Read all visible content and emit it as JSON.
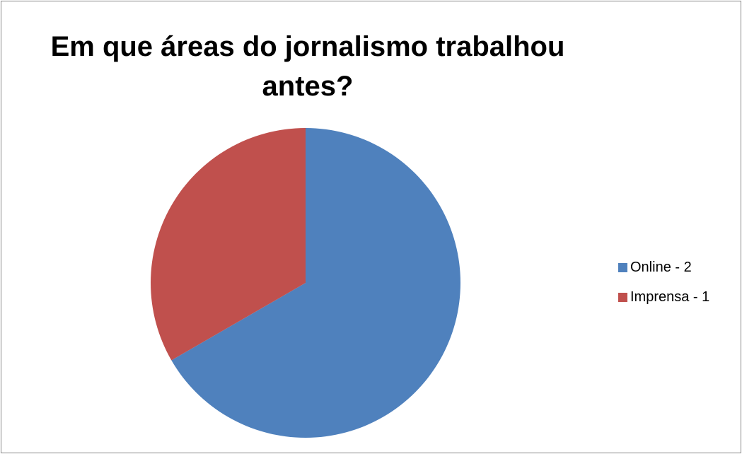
{
  "chart_data": {
    "type": "pie",
    "title": "Em que áreas do jornalismo trabalhou antes?",
    "series": [
      {
        "values": [
          2,
          1
        ]
      }
    ],
    "categories": [
      "Online - 2",
      "Imprensa - 1"
    ],
    "slices": [
      {
        "label": "Online - 2",
        "value": 2,
        "color": "#4F81BD"
      },
      {
        "label": "Imprensa - 1",
        "value": 1,
        "color": "#C0504D"
      }
    ],
    "legend_position": "right",
    "data_labels": false
  }
}
